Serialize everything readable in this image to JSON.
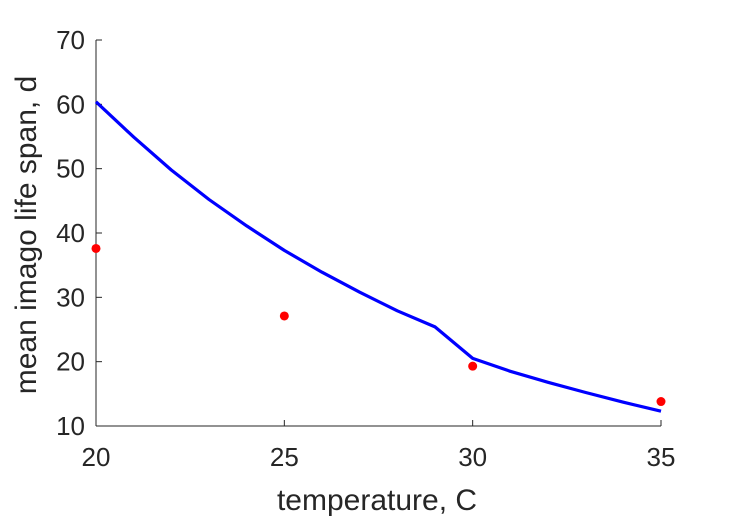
{
  "chart_data": {
    "type": "scatter",
    "title": "",
    "xlabel": "temperature, C",
    "ylabel": "mean imago life span, d",
    "xlim": [
      20,
      35
    ],
    "ylim": [
      10,
      70
    ],
    "xticks": [
      20,
      25,
      30,
      35
    ],
    "yticks": [
      10,
      20,
      30,
      40,
      50,
      60,
      70
    ],
    "grid": false,
    "box": false,
    "series": [
      {
        "kind": "scatter",
        "color": "#ff0000",
        "x": [
          20,
          25,
          30,
          35
        ],
        "y": [
          37.6,
          27.1,
          19.3,
          13.8
        ]
      },
      {
        "kind": "line",
        "color": "#0000ff",
        "x": [
          20,
          21,
          22,
          23,
          24,
          25,
          26,
          27,
          28,
          29,
          30,
          31,
          32,
          33,
          34,
          35
        ],
        "y": [
          60.4,
          54.9,
          49.8,
          45.2,
          41.1,
          37.3,
          33.9,
          30.8,
          27.9,
          25.4,
          20.5,
          18.5,
          16.8,
          15.2,
          13.7,
          12.3
        ]
      }
    ]
  }
}
